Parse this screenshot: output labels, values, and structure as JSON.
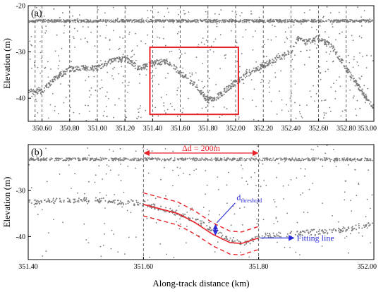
{
  "colors": {
    "points": "#7a7a7a",
    "highlight": "#e8232a",
    "fit_annotation": "#2a2ad8",
    "axis": "#000000",
    "grid": "#444444"
  },
  "chart_data": [
    {
      "type": "scatter",
      "panel_label": "(a)",
      "xlabel": "",
      "ylabel": "Elevation (m)",
      "xlim": [
        350.5,
        353.0
      ],
      "ylim": [
        -45,
        -20
      ],
      "xticks": [
        350.6,
        350.8,
        351.0,
        351.2,
        351.4,
        351.6,
        351.8,
        352.0,
        352.2,
        352.4,
        352.6,
        352.8,
        353.0
      ],
      "xtick_labels": [
        "350.60",
        "350.80",
        "351.00",
        "351.20",
        "351.40",
        "351.60",
        "351.80",
        "352.00",
        "352.20",
        "352.40",
        "352.60",
        "352.80",
        "353.00"
      ],
      "yticks": [
        -20,
        -30,
        -40
      ],
      "ytick_labels": [
        "-20",
        "-30",
        "-40"
      ],
      "vertical_grid": [
        350.55,
        350.6,
        350.8,
        351.0,
        351.2,
        351.4,
        351.6,
        351.8,
        352.0,
        352.2,
        352.4,
        352.6,
        352.8,
        353.0
      ],
      "grid": "dashed vertical lines",
      "series": [
        {
          "role": "upper-band",
          "x": [
            350.5,
            353.0
          ],
          "y": [
            -23.3,
            -23.3
          ]
        },
        {
          "role": "ground-profile",
          "x": [
            350.6,
            350.7,
            350.8,
            350.9,
            351.0,
            351.1,
            351.2,
            351.3,
            351.4,
            351.5,
            351.6,
            351.7,
            351.8,
            351.85,
            351.9,
            352.0,
            352.1,
            352.2,
            352.3,
            352.4,
            352.45,
            352.5,
            352.6,
            352.7,
            352.8,
            352.9,
            353.0
          ],
          "y": [
            -38.5,
            -35.5,
            -33.8,
            -33.5,
            -33.6,
            -32.0,
            -31.5,
            -33.5,
            -32.5,
            -32.0,
            -34.5,
            -37.0,
            -40.5,
            -40.0,
            -39.0,
            -36.5,
            -34.5,
            -33.0,
            -31.5,
            -30.0,
            -27.0,
            -28.0,
            -27.0,
            -29.0,
            -33.5,
            -38.0,
            -42.0
          ]
        }
      ],
      "highlight_box": {
        "x": [
          351.38,
          352.02
        ],
        "y": [
          -43.5,
          -29.0
        ]
      }
    },
    {
      "type": "scatter",
      "panel_label": "(b)",
      "xlabel": "Along-track distance (km)",
      "ylabel": "Elevation (m)",
      "xlim": [
        351.4,
        352.0
      ],
      "ylim": [
        -45,
        -20
      ],
      "xticks": [
        351.4,
        351.6,
        351.8,
        352.0
      ],
      "xtick_labels": [
        "351.40",
        "351.60",
        "351.80",
        "352.00"
      ],
      "yticks": [
        -30,
        -40
      ],
      "ytick_labels": [
        "-30",
        "-40"
      ],
      "vertical_grid": [
        351.6,
        351.8
      ],
      "grid": "dashed vertical lines",
      "series": [
        {
          "role": "upper-band",
          "x": [
            351.4,
            352.0
          ],
          "y": [
            -23.2,
            -23.2
          ]
        },
        {
          "role": "ground-profile",
          "x": [
            351.4,
            351.5,
            351.6,
            351.65,
            351.7,
            351.75,
            351.78,
            351.8,
            351.85,
            351.9,
            351.95,
            352.0
          ],
          "y": [
            -32.5,
            -32.0,
            -32.8,
            -34.5,
            -37.0,
            -40.5,
            -41.5,
            -40.0,
            -39.5,
            -39.0,
            -38.5,
            -37.0
          ]
        },
        {
          "role": "fitting-line",
          "x": [
            351.6,
            351.63,
            351.66,
            351.69,
            351.72,
            351.75,
            351.77,
            351.8
          ],
          "y": [
            -33.0,
            -34.0,
            -35.0,
            -37.0,
            -39.5,
            -41.3,
            -41.5,
            -40.3
          ]
        }
      ],
      "threshold_offset": 2.5,
      "annotations": {
        "span_label": "Δd = 200m",
        "span_x": [
          351.6,
          351.8
        ],
        "fitting_label": "Fitting line",
        "threshold_label": "d",
        "threshold_subscript": "threshold"
      }
    }
  ]
}
